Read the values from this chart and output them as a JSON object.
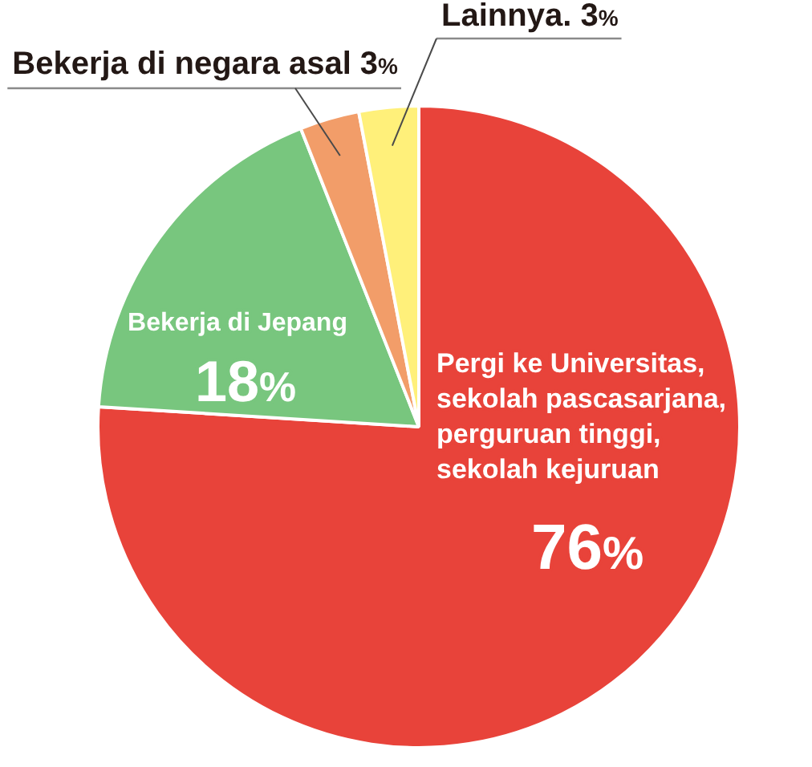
{
  "chart_data": {
    "type": "pie",
    "categories": [
      "Pergi ke Universitas, sekolah pascasarjana, perguruan tinggi, sekolah kejuruan",
      "Bekerja di Jepang",
      "Bekerja di negara asal",
      "Lainnya."
    ],
    "values": [
      76,
      18,
      3,
      3
    ],
    "colors": [
      "#e8433a",
      "#78c67e",
      "#f29d69",
      "#fff07a"
    ],
    "value_labels": [
      "76%",
      "18%",
      "3%",
      "3%"
    ]
  }
}
